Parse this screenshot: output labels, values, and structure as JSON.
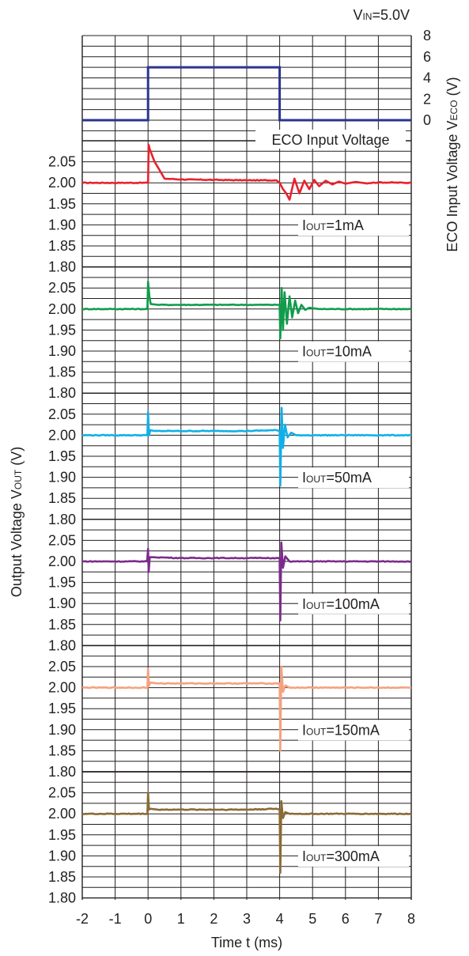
{
  "chart_data": {
    "type": "line",
    "condition": {
      "pre": "V",
      "sub": "IN",
      "post": "=5.0V"
    },
    "xlabel": "Time t (ms)",
    "xlim": [
      -2,
      8
    ],
    "xticks": [
      "-2",
      "-1",
      "0",
      "1",
      "2",
      "3",
      "4",
      "5",
      "6",
      "7",
      "8"
    ],
    "left_ylabel": {
      "pre": "Output Voltage V",
      "sub": "OUT",
      "post": " (V)"
    },
    "right_ylabel": {
      "pre": "ECO Input Voltage V",
      "sub": "ECO",
      "post": " (V)"
    },
    "eco_panel": {
      "label": "ECO Input Voltage",
      "ylim": [
        0,
        8
      ],
      "yticks": [
        "0",
        "2",
        "4",
        "6",
        "8"
      ],
      "color": "#2a3590",
      "points": [
        [
          -2,
          0
        ],
        [
          0,
          0
        ],
        [
          0,
          5
        ],
        [
          4,
          0.0001
        ],
        [
          4,
          5
        ],
        [
          4,
          0
        ],
        [
          8,
          0
        ]
      ]
    },
    "vout_ylim": [
      1.8,
      2.1
    ],
    "vout_yticks": [
      "1.80",
      "1.85",
      "1.90",
      "1.95",
      "2.00",
      "2.05"
    ],
    "series": [
      {
        "name": "1mA",
        "label_pre": "I",
        "label_sub": "OUT",
        "label_post": "=1mA",
        "color": "#e8222d",
        "points": [
          [
            -2,
            2.0
          ],
          [
            0,
            2.0
          ],
          [
            0.02,
            2.09
          ],
          [
            0.05,
            2.08
          ],
          [
            0.2,
            2.05
          ],
          [
            0.35,
            2.03
          ],
          [
            0.5,
            2.01
          ],
          [
            1.0,
            2.008
          ],
          [
            2.0,
            2.007
          ],
          [
            3.0,
            2.006
          ],
          [
            3.9,
            2.006
          ],
          [
            4.0,
            2.0
          ],
          [
            4.1,
            1.985
          ],
          [
            4.2,
            1.975
          ],
          [
            4.3,
            1.96
          ],
          [
            4.45,
            2.01
          ],
          [
            4.6,
            1.975
          ],
          [
            4.75,
            2.005
          ],
          [
            4.9,
            1.985
          ],
          [
            5.05,
            2.007
          ],
          [
            5.2,
            1.992
          ],
          [
            5.4,
            2.005
          ],
          [
            5.6,
            1.996
          ],
          [
            5.8,
            2.003
          ],
          [
            6.0,
            1.998
          ],
          [
            6.3,
            2.002
          ],
          [
            6.6,
            1.999
          ],
          [
            7.0,
            2.001
          ],
          [
            8,
            2.0
          ]
        ]
      },
      {
        "name": "10mA",
        "label_pre": "I",
        "label_sub": "OUT",
        "label_post": "=10mA",
        "color": "#109c4b",
        "points": [
          [
            -2,
            2.0
          ],
          [
            -0.02,
            2.0
          ],
          [
            0,
            2.065
          ],
          [
            0.04,
            2.03
          ],
          [
            0.08,
            2.012
          ],
          [
            0.3,
            2.01
          ],
          [
            1,
            2.01
          ],
          [
            2,
            2.01
          ],
          [
            3,
            2.01
          ],
          [
            3.9,
            2.01
          ],
          [
            4.0,
            2.01
          ],
          [
            4.02,
            1.93
          ],
          [
            4.06,
            2.05
          ],
          [
            4.1,
            1.95
          ],
          [
            4.15,
            2.04
          ],
          [
            4.22,
            1.965
          ],
          [
            4.3,
            2.03
          ],
          [
            4.38,
            1.98
          ],
          [
            4.47,
            2.02
          ],
          [
            4.56,
            1.99
          ],
          [
            4.66,
            2.01
          ],
          [
            4.78,
            1.998
          ],
          [
            4.9,
            2.003
          ],
          [
            5.2,
            2.0
          ],
          [
            8,
            2.0
          ]
        ]
      },
      {
        "name": "50mA",
        "label_pre": "I",
        "label_sub": "OUT",
        "label_post": "=50mA",
        "color": "#0fb0e8",
        "points": [
          [
            -2,
            2.0
          ],
          [
            -0.02,
            2.0
          ],
          [
            0,
            2.055
          ],
          [
            0.03,
            2.0
          ],
          [
            0.07,
            2.012
          ],
          [
            0.2,
            2.01
          ],
          [
            1,
            2.01
          ],
          [
            2,
            2.01
          ],
          [
            3,
            2.01
          ],
          [
            3.9,
            2.012
          ],
          [
            4.0,
            2.01
          ],
          [
            4.02,
            1.88
          ],
          [
            4.06,
            2.065
          ],
          [
            4.1,
            1.97
          ],
          [
            4.16,
            2.025
          ],
          [
            4.24,
            1.995
          ],
          [
            4.35,
            2.006
          ],
          [
            4.5,
            2.0
          ],
          [
            8,
            2.0
          ]
        ]
      },
      {
        "name": "100mA",
        "label_pre": "I",
        "label_sub": "OUT",
        "label_post": "=100mA",
        "color": "#7d2b8b",
        "points": [
          [
            -2,
            2.0
          ],
          [
            -0.03,
            2.0
          ],
          [
            0,
            2.03
          ],
          [
            0.02,
            1.975
          ],
          [
            0.05,
            2.01
          ],
          [
            0.2,
            2.01
          ],
          [
            1,
            2.008
          ],
          [
            2,
            2.008
          ],
          [
            3,
            2.008
          ],
          [
            3.9,
            2.008
          ],
          [
            4.0,
            2.008
          ],
          [
            4.02,
            1.86
          ],
          [
            4.05,
            2.045
          ],
          [
            4.1,
            1.985
          ],
          [
            4.17,
            2.012
          ],
          [
            4.3,
            2.0
          ],
          [
            8,
            2.0
          ]
        ]
      },
      {
        "name": "150mA",
        "label_pre": "I",
        "label_sub": "OUT",
        "label_post": "=150mA",
        "color": "#f5a17f",
        "points": [
          [
            -2,
            2.0
          ],
          [
            -0.02,
            2.0
          ],
          [
            0,
            2.045
          ],
          [
            0.03,
            2.005
          ],
          [
            0.07,
            2.012
          ],
          [
            0.3,
            2.01
          ],
          [
            1,
            2.01
          ],
          [
            2,
            2.01
          ],
          [
            3,
            2.01
          ],
          [
            3.9,
            2.01
          ],
          [
            4.0,
            2.01
          ],
          [
            4.02,
            1.85
          ],
          [
            4.05,
            2.05
          ],
          [
            4.1,
            1.99
          ],
          [
            4.17,
            2.005
          ],
          [
            4.3,
            2.0
          ],
          [
            8,
            2.0
          ]
        ]
      },
      {
        "name": "300mA",
        "label_pre": "I",
        "label_sub": "OUT",
        "label_post": "=300mA",
        "color": "#8a6a36",
        "points": [
          [
            -2,
            2.0
          ],
          [
            -0.02,
            2.0
          ],
          [
            0,
            2.05
          ],
          [
            0.03,
            2.01
          ],
          [
            0.07,
            2.012
          ],
          [
            0.3,
            2.01
          ],
          [
            1,
            2.01
          ],
          [
            2,
            2.01
          ],
          [
            3,
            2.01
          ],
          [
            3.9,
            2.012
          ],
          [
            4.0,
            2.01
          ],
          [
            4.02,
            1.86
          ],
          [
            4.05,
            2.03
          ],
          [
            4.1,
            1.99
          ],
          [
            4.17,
            2.004
          ],
          [
            4.3,
            2.0
          ],
          [
            8,
            2.0
          ]
        ]
      }
    ]
  }
}
